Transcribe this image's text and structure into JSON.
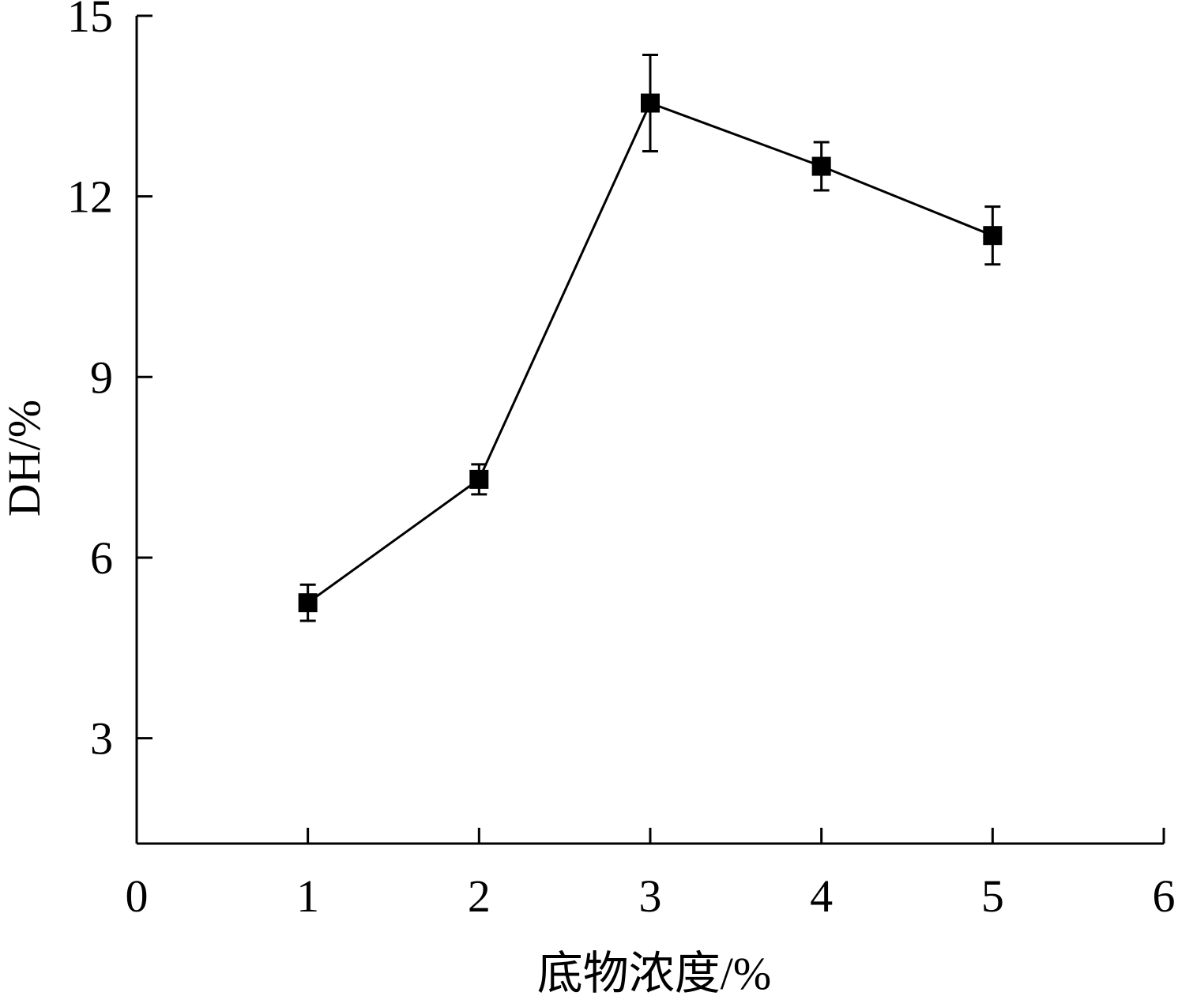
{
  "chart_data": {
    "type": "line",
    "title": "",
    "xlabel": "底物浓度/%",
    "ylabel": "DH/%",
    "xlim": [
      0,
      6
    ],
    "ylim": [
      1.25,
      15
    ],
    "x_ticks": [
      0,
      1,
      2,
      3,
      4,
      5,
      6
    ],
    "y_ticks": [
      3,
      6,
      9,
      12,
      15
    ],
    "grid": false,
    "legend": "none",
    "series": [
      {
        "marker": "square",
        "color": "#000000",
        "x": [
          1,
          2,
          3,
          4,
          5
        ],
        "y": [
          5.25,
          7.3,
          13.55,
          12.5,
          11.35
        ],
        "error": [
          0.3,
          0.25,
          0.8,
          0.4,
          0.48
        ]
      }
    ]
  }
}
